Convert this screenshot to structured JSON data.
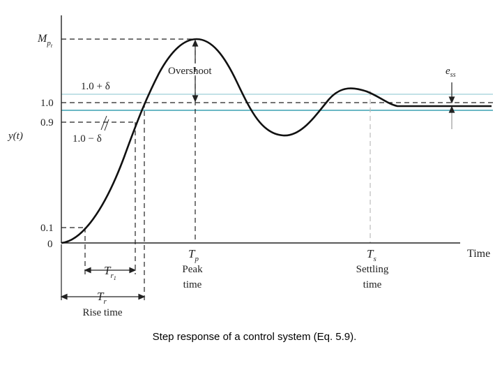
{
  "figure": {
    "y_axis_label": "y(t)",
    "x_axis_label": "Time",
    "ticks": {
      "mp": "M",
      "mp_sub": "p",
      "mp_subsub": "t",
      "one_plus_delta": "1.0 + δ",
      "one": "1.0",
      "zero_nine": "0.9",
      "one_minus_delta": "1.0 − δ",
      "zero_one": "0.1",
      "zero": "0"
    },
    "annotations": {
      "overshoot": "Overshoot",
      "ess_e": "e",
      "ess_sub": "ss",
      "tp": "T",
      "tp_sub": "p",
      "peak_line1": "Peak",
      "peak_line2": "time",
      "ts": "T",
      "ts_sub": "s",
      "settling_line1": "Settling",
      "settling_line2": "time",
      "tr1": "T",
      "tr1_sub": "r",
      "tr1_subsub": "1",
      "tr": "T",
      "tr_sub": "r",
      "rise_time": "Rise time"
    },
    "colors": {
      "response": "#111111",
      "band_upper": "#9fcfd8",
      "band_lower": "#3aa0b2",
      "settle_guide": "#bbbbbb"
    }
  },
  "caption": "Step response of a control system (Eq. 5.9)."
}
